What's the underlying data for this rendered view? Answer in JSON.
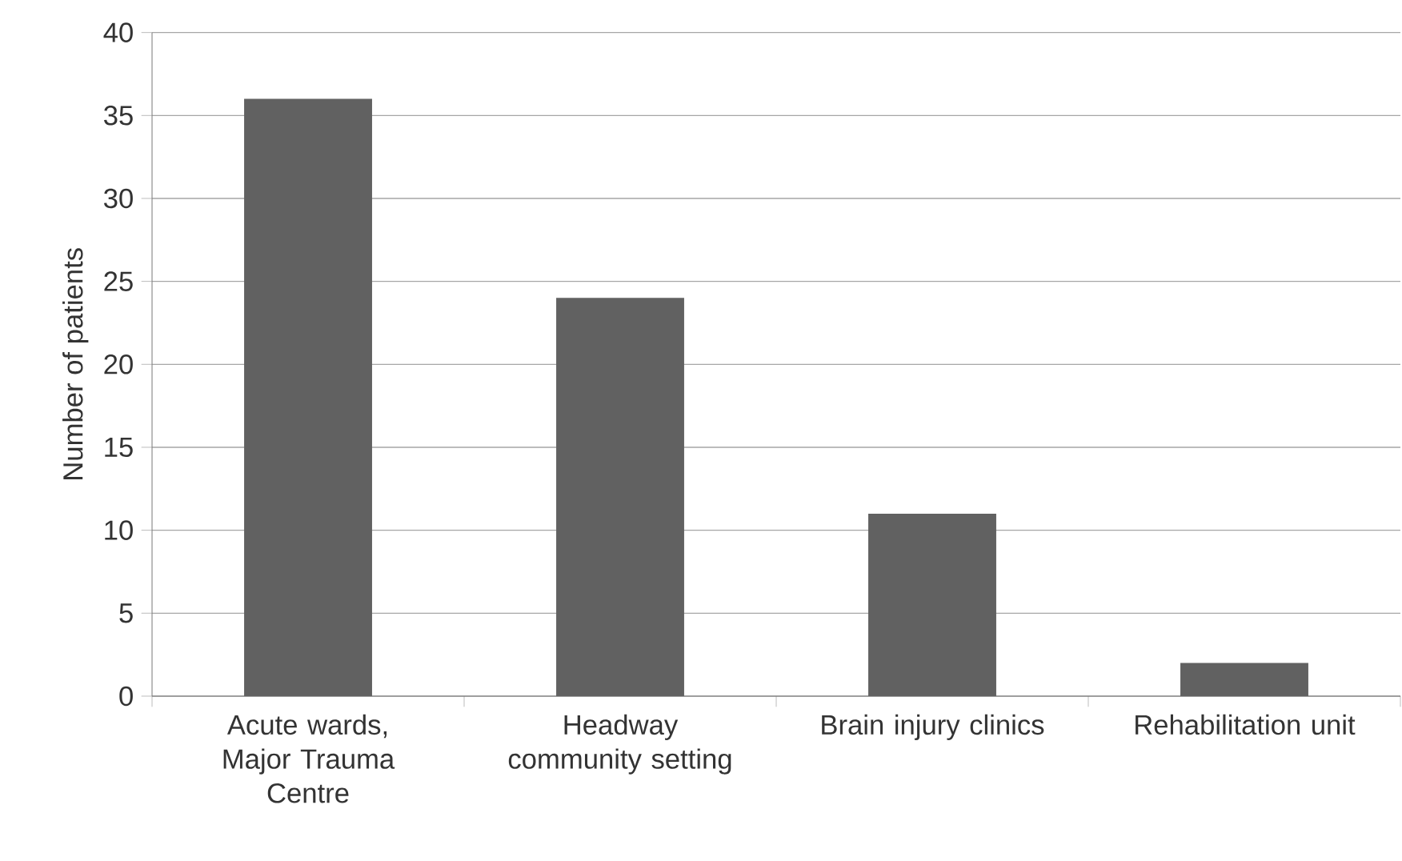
{
  "chart_data": {
    "type": "bar",
    "ylabel": "Number of patients",
    "categories": [
      "Acute wards, Major Trauma Centre",
      "Headway community setting",
      "Brain injury clinics",
      "Rehabilitation unit"
    ],
    "values": [
      36,
      24,
      11,
      2
    ],
    "color": "#616161",
    "ylim": [
      0,
      40
    ],
    "yticks": [
      0,
      5,
      10,
      15,
      20,
      25,
      30,
      35,
      40
    ],
    "grid": "y"
  }
}
